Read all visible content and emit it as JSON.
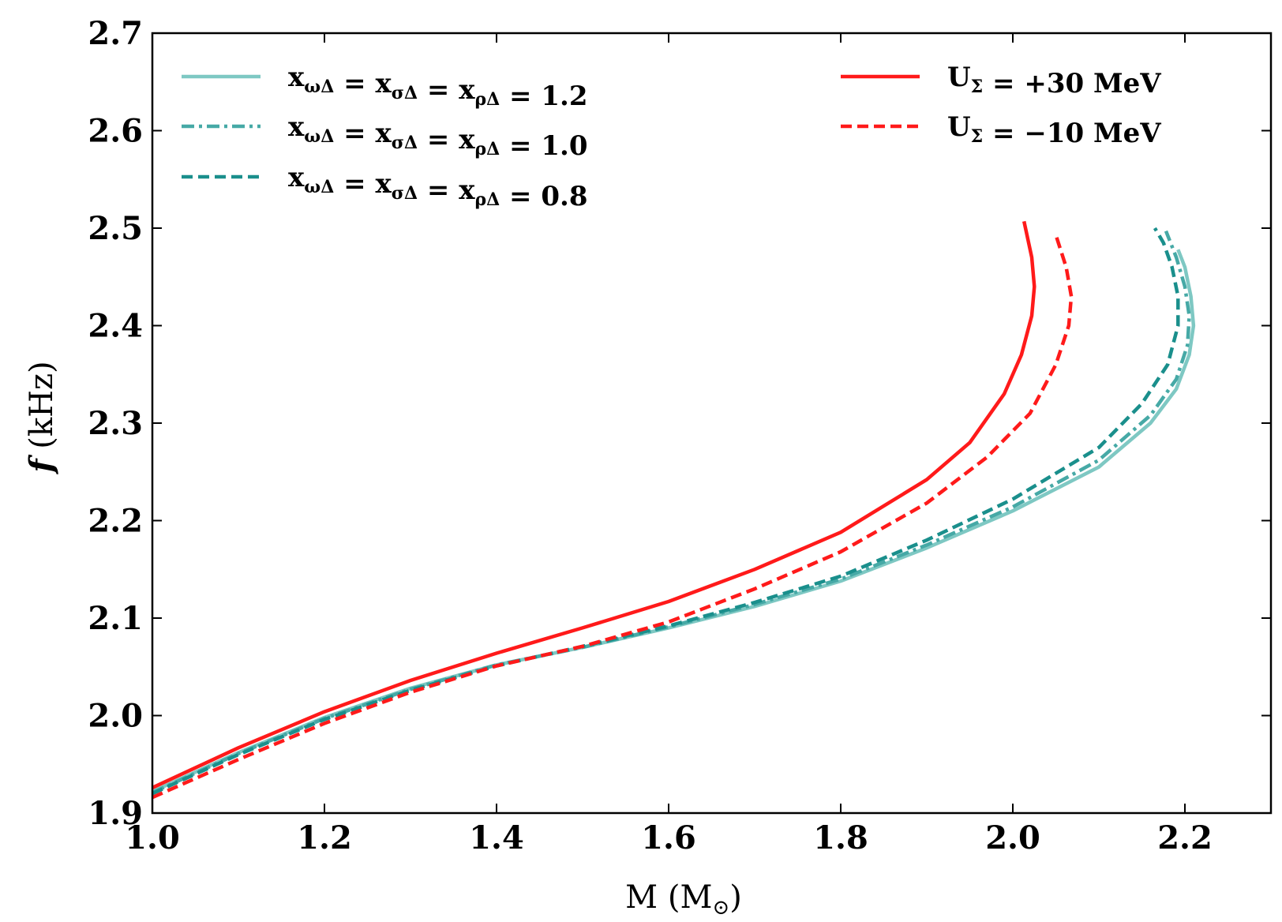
{
  "chart_data": {
    "type": "line",
    "title": "",
    "xlabel": {
      "main": "M (M",
      "sub": "⊙",
      "close": ")"
    },
    "ylabel": {
      "italic": "f",
      "rest": " (kHz)"
    },
    "xlim": [
      1.0,
      2.3
    ],
    "ylim": [
      1.9,
      2.7
    ],
    "xticks": [
      1.0,
      1.2,
      1.4,
      1.6,
      1.8,
      2.0,
      2.2
    ],
    "xtick_labels": [
      "1.0",
      "1.2",
      "1.4",
      "1.6",
      "1.8",
      "2.0",
      "2.2"
    ],
    "yticks": [
      1.9,
      2.0,
      2.1,
      2.2,
      2.3,
      2.4,
      2.5,
      2.6,
      2.7
    ],
    "ytick_labels": [
      "1.9",
      "2.0",
      "2.1",
      "2.2",
      "2.3",
      "2.4",
      "2.5",
      "2.6",
      "2.7"
    ],
    "grid": false,
    "series": [
      {
        "id": "x12",
        "color": "#7ec8c3",
        "dash": "solid",
        "legend": {
          "prefix": "x",
          "sub1": "ωΔ",
          "mid1": " = x",
          "sub2": "σΔ",
          "mid2": " = x",
          "sub3": "ρΔ",
          "value": " = 1.2"
        },
        "points": [
          [
            1.0,
            1.922
          ],
          [
            1.1,
            1.962
          ],
          [
            1.2,
            1.998
          ],
          [
            1.3,
            2.028
          ],
          [
            1.4,
            2.052
          ],
          [
            1.5,
            2.07
          ],
          [
            1.6,
            2.09
          ],
          [
            1.7,
            2.112
          ],
          [
            1.8,
            2.138
          ],
          [
            1.9,
            2.172
          ],
          [
            2.0,
            2.21
          ],
          [
            2.1,
            2.255
          ],
          [
            2.16,
            2.3
          ],
          [
            2.19,
            2.335
          ],
          [
            2.205,
            2.37
          ],
          [
            2.21,
            2.4
          ],
          [
            2.207,
            2.43
          ],
          [
            2.2,
            2.46
          ],
          [
            2.192,
            2.478
          ]
        ]
      },
      {
        "id": "x10",
        "color": "#46a9a6",
        "dash": "dashdot",
        "legend": {
          "prefix": "x",
          "sub1": "ωΔ",
          "mid1": " = x",
          "sub2": "σΔ",
          "mid2": " = x",
          "sub3": "ρΔ",
          "value": " = 1.0"
        },
        "points": [
          [
            1.0,
            1.921
          ],
          [
            1.1,
            1.961
          ],
          [
            1.2,
            1.997
          ],
          [
            1.3,
            2.027
          ],
          [
            1.4,
            2.052
          ],
          [
            1.5,
            2.07
          ],
          [
            1.6,
            2.091
          ],
          [
            1.7,
            2.114
          ],
          [
            1.8,
            2.14
          ],
          [
            1.9,
            2.175
          ],
          [
            2.0,
            2.214
          ],
          [
            2.1,
            2.262
          ],
          [
            2.16,
            2.308
          ],
          [
            2.19,
            2.345
          ],
          [
            2.203,
            2.38
          ],
          [
            2.205,
            2.41
          ],
          [
            2.2,
            2.44
          ],
          [
            2.19,
            2.47
          ],
          [
            2.178,
            2.497
          ]
        ]
      },
      {
        "id": "x08",
        "color": "#1a8f8c",
        "dash": "dashed",
        "legend": {
          "prefix": "x",
          "sub1": "ωΔ",
          "mid1": " = x",
          "sub2": "σΔ",
          "mid2": " = x",
          "sub3": "ρΔ",
          "value": " = 0.8"
        },
        "points": [
          [
            1.0,
            1.92
          ],
          [
            1.1,
            1.96
          ],
          [
            1.2,
            1.996
          ],
          [
            1.3,
            2.026
          ],
          [
            1.4,
            2.051
          ],
          [
            1.5,
            2.071
          ],
          [
            1.6,
            2.092
          ],
          [
            1.7,
            2.116
          ],
          [
            1.8,
            2.143
          ],
          [
            1.9,
            2.18
          ],
          [
            2.0,
            2.222
          ],
          [
            2.1,
            2.275
          ],
          [
            2.15,
            2.32
          ],
          [
            2.18,
            2.36
          ],
          [
            2.192,
            2.4
          ],
          [
            2.192,
            2.43
          ],
          [
            2.185,
            2.46
          ],
          [
            2.175,
            2.485
          ],
          [
            2.165,
            2.5
          ]
        ]
      },
      {
        "id": "u30",
        "color": "#ff1a1a",
        "dash": "solid",
        "legend": {
          "prefix": "U",
          "sub1": "Σ",
          "value": " = +30 MeV"
        },
        "points": [
          [
            1.0,
            1.926
          ],
          [
            1.1,
            1.967
          ],
          [
            1.2,
            2.004
          ],
          [
            1.3,
            2.036
          ],
          [
            1.4,
            2.064
          ],
          [
            1.5,
            2.09
          ],
          [
            1.6,
            2.117
          ],
          [
            1.7,
            2.15
          ],
          [
            1.8,
            2.188
          ],
          [
            1.9,
            2.242
          ],
          [
            1.95,
            2.28
          ],
          [
            1.99,
            2.33
          ],
          [
            2.01,
            2.37
          ],
          [
            2.022,
            2.41
          ],
          [
            2.025,
            2.44
          ],
          [
            2.022,
            2.47
          ],
          [
            2.013,
            2.507
          ]
        ]
      },
      {
        "id": "um10",
        "color": "#ff1a1a",
        "dash": "dashed",
        "legend": {
          "prefix": "U",
          "sub1": "Σ",
          "value": " = −10 MeV"
        },
        "points": [
          [
            1.0,
            1.916
          ],
          [
            1.1,
            1.955
          ],
          [
            1.2,
            1.992
          ],
          [
            1.3,
            2.024
          ],
          [
            1.4,
            2.051
          ],
          [
            1.5,
            2.071
          ],
          [
            1.6,
            2.096
          ],
          [
            1.7,
            2.13
          ],
          [
            1.8,
            2.168
          ],
          [
            1.9,
            2.218
          ],
          [
            1.97,
            2.265
          ],
          [
            2.02,
            2.31
          ],
          [
            2.05,
            2.36
          ],
          [
            2.065,
            2.4
          ],
          [
            2.068,
            2.43
          ],
          [
            2.062,
            2.46
          ],
          [
            2.05,
            2.493
          ]
        ]
      }
    ]
  }
}
